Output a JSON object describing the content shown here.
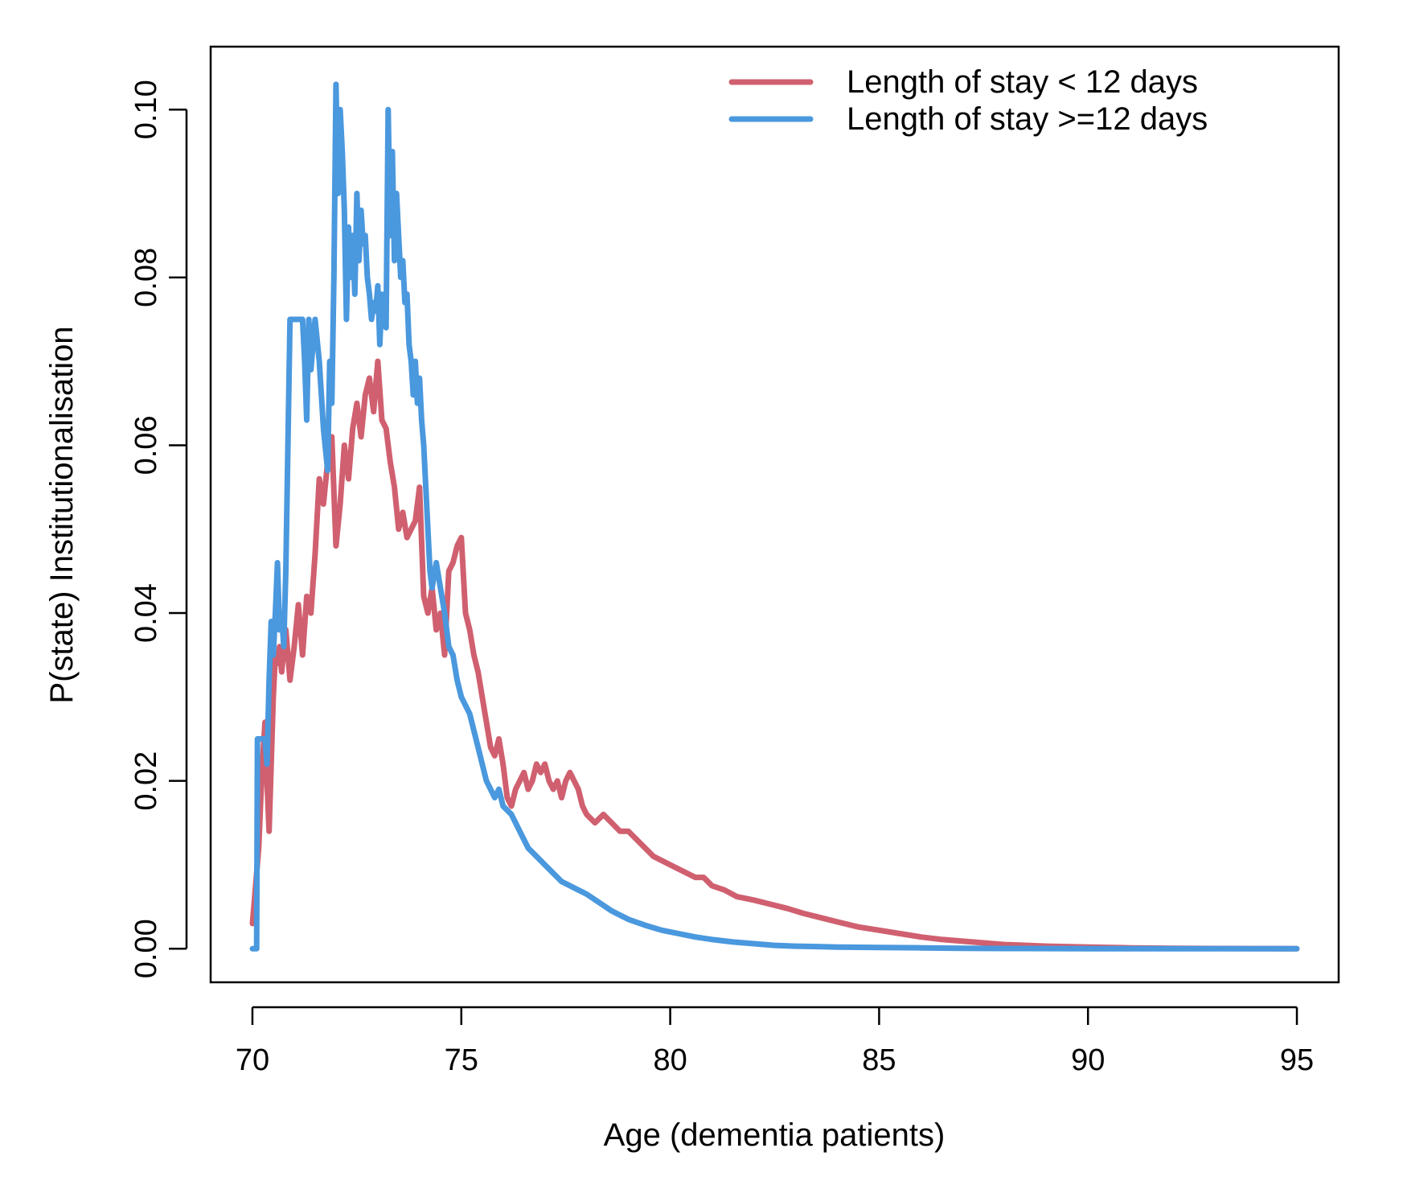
{
  "chart_data": {
    "type": "line",
    "xlabel": "Age (dementia patients)",
    "ylabel": "P(state) Institutionalisation",
    "xlim": [
      69.0,
      96.0
    ],
    "ylim": [
      -0.004,
      0.1075
    ],
    "xticks": [
      70,
      75,
      80,
      85,
      90,
      95
    ],
    "xtick_labels": [
      "70",
      "75",
      "80",
      "85",
      "90",
      "95"
    ],
    "yticks": [
      0.0,
      0.02,
      0.04,
      0.06,
      0.08,
      0.1
    ],
    "ytick_labels": [
      "0.00",
      "0.02",
      "0.04",
      "0.06",
      "0.08",
      "0.10"
    ],
    "grid": false,
    "legend_position": "top-right",
    "series": [
      {
        "name": "Length of stay < 12 days",
        "color": "#d0606f",
        "x": [
          70.0,
          70.05,
          70.1,
          70.15,
          70.2,
          70.25,
          70.3,
          70.35,
          70.4,
          70.45,
          70.5,
          70.55,
          70.6,
          70.65,
          70.7,
          70.8,
          70.9,
          71.0,
          71.1,
          71.2,
          71.3,
          71.4,
          71.5,
          71.6,
          71.7,
          71.8,
          71.9,
          72.0,
          72.1,
          72.2,
          72.3,
          72.4,
          72.5,
          72.6,
          72.7,
          72.8,
          72.9,
          73.0,
          73.1,
          73.2,
          73.3,
          73.4,
          73.5,
          73.6,
          73.7,
          73.8,
          73.9,
          74.0,
          74.1,
          74.2,
          74.3,
          74.4,
          74.5,
          74.6,
          74.7,
          74.8,
          74.9,
          75.0,
          75.1,
          75.2,
          75.3,
          75.4,
          75.5,
          75.6,
          75.7,
          75.8,
          75.9,
          76.0,
          76.1,
          76.2,
          76.3,
          76.4,
          76.5,
          76.6,
          76.7,
          76.8,
          76.9,
          77.0,
          77.1,
          77.2,
          77.3,
          77.4,
          77.5,
          77.6,
          77.7,
          77.8,
          77.9,
          78.0,
          78.2,
          78.4,
          78.6,
          78.8,
          79.0,
          79.2,
          79.4,
          79.6,
          79.8,
          80.0,
          80.2,
          80.4,
          80.6,
          80.8,
          81.0,
          81.3,
          81.6,
          82.0,
          82.4,
          82.8,
          83.2,
          83.6,
          84.0,
          84.5,
          85.0,
          85.5,
          86.0,
          86.5,
          87.0,
          87.5,
          88.0,
          89.0,
          90.0,
          91.0,
          92.0,
          93.0,
          94.0,
          95.0
        ],
        "y": [
          0.003,
          0.006,
          0.009,
          0.012,
          0.018,
          0.023,
          0.027,
          0.02,
          0.014,
          0.022,
          0.03,
          0.035,
          0.034,
          0.036,
          0.033,
          0.038,
          0.032,
          0.036,
          0.041,
          0.035,
          0.042,
          0.04,
          0.047,
          0.056,
          0.053,
          0.058,
          0.061,
          0.048,
          0.053,
          0.06,
          0.056,
          0.062,
          0.065,
          0.061,
          0.066,
          0.068,
          0.064,
          0.07,
          0.063,
          0.062,
          0.058,
          0.055,
          0.05,
          0.052,
          0.049,
          0.05,
          0.051,
          0.055,
          0.042,
          0.04,
          0.043,
          0.038,
          0.04,
          0.035,
          0.045,
          0.046,
          0.048,
          0.049,
          0.04,
          0.038,
          0.035,
          0.033,
          0.03,
          0.027,
          0.024,
          0.023,
          0.025,
          0.022,
          0.018,
          0.017,
          0.019,
          0.02,
          0.021,
          0.019,
          0.02,
          0.022,
          0.021,
          0.022,
          0.02,
          0.019,
          0.02,
          0.018,
          0.02,
          0.021,
          0.02,
          0.019,
          0.017,
          0.016,
          0.015,
          0.016,
          0.015,
          0.014,
          0.014,
          0.013,
          0.012,
          0.011,
          0.0105,
          0.01,
          0.0095,
          0.009,
          0.0085,
          0.0085,
          0.0075,
          0.007,
          0.0062,
          0.0058,
          0.0053,
          0.0048,
          0.0042,
          0.0037,
          0.0032,
          0.0026,
          0.0022,
          0.0018,
          0.0014,
          0.0011,
          0.0009,
          0.0007,
          0.0005,
          0.0003,
          0.0002,
          0.0001,
          5e-05,
          3e-05,
          2e-05,
          0.0
        ]
      },
      {
        "name": "Length of stay >=12 days",
        "color": "#4a98de",
        "x": [
          70.0,
          70.05,
          70.1,
          70.12,
          70.15,
          70.2,
          70.3,
          70.35,
          70.4,
          70.45,
          70.5,
          70.55,
          70.6,
          70.65,
          70.7,
          70.75,
          70.8,
          70.85,
          70.9,
          71.0,
          71.1,
          71.2,
          71.25,
          71.3,
          71.35,
          71.4,
          71.5,
          71.6,
          71.7,
          71.8,
          71.85,
          71.9,
          71.95,
          72.0,
          72.05,
          72.1,
          72.15,
          72.2,
          72.25,
          72.3,
          72.35,
          72.4,
          72.45,
          72.5,
          72.55,
          72.6,
          72.65,
          72.7,
          72.75,
          72.8,
          72.85,
          72.9,
          72.95,
          73.0,
          73.05,
          73.1,
          73.15,
          73.2,
          73.25,
          73.3,
          73.35,
          73.4,
          73.45,
          73.5,
          73.55,
          73.6,
          73.65,
          73.7,
          73.75,
          73.8,
          73.85,
          73.9,
          73.95,
          74.0,
          74.05,
          74.1,
          74.15,
          74.2,
          74.25,
          74.3,
          74.4,
          74.5,
          74.6,
          74.7,
          74.8,
          74.9,
          75.0,
          75.1,
          75.2,
          75.3,
          75.4,
          75.5,
          75.6,
          75.7,
          75.8,
          75.9,
          76.0,
          76.2,
          76.4,
          76.6,
          76.8,
          77.0,
          77.2,
          77.4,
          77.6,
          77.8,
          78.0,
          78.3,
          78.6,
          79.0,
          79.4,
          79.8,
          80.2,
          80.6,
          81.0,
          81.5,
          82.0,
          82.5,
          83.0,
          84.0,
          85.0,
          86.0,
          87.0,
          88.0,
          90.0,
          92.0,
          95.0
        ],
        "y": [
          0.0,
          0.0,
          0.0,
          0.025,
          0.025,
          0.025,
          0.025,
          0.022,
          0.032,
          0.039,
          0.035,
          0.04,
          0.046,
          0.038,
          0.04,
          0.036,
          0.045,
          0.06,
          0.075,
          0.075,
          0.075,
          0.075,
          0.07,
          0.063,
          0.075,
          0.069,
          0.075,
          0.07,
          0.062,
          0.057,
          0.07,
          0.065,
          0.08,
          0.103,
          0.09,
          0.1,
          0.095,
          0.088,
          0.075,
          0.086,
          0.08,
          0.085,
          0.078,
          0.09,
          0.082,
          0.088,
          0.084,
          0.085,
          0.08,
          0.078,
          0.075,
          0.077,
          0.076,
          0.079,
          0.072,
          0.078,
          0.076,
          0.074,
          0.1,
          0.085,
          0.095,
          0.082,
          0.09,
          0.085,
          0.08,
          0.082,
          0.077,
          0.078,
          0.072,
          0.07,
          0.066,
          0.07,
          0.065,
          0.068,
          0.063,
          0.06,
          0.055,
          0.05,
          0.045,
          0.043,
          0.046,
          0.043,
          0.04,
          0.036,
          0.035,
          0.032,
          0.03,
          0.029,
          0.028,
          0.026,
          0.024,
          0.022,
          0.02,
          0.019,
          0.018,
          0.019,
          0.017,
          0.016,
          0.014,
          0.012,
          0.011,
          0.01,
          0.009,
          0.008,
          0.0075,
          0.007,
          0.0065,
          0.0055,
          0.0045,
          0.0035,
          0.0028,
          0.0022,
          0.0018,
          0.0014,
          0.0011,
          0.0008,
          0.0006,
          0.0004,
          0.0003,
          0.0002,
          0.00015,
          0.0001,
          5e-05,
          3e-05,
          1e-05,
          0.0,
          0.0
        ]
      }
    ]
  }
}
